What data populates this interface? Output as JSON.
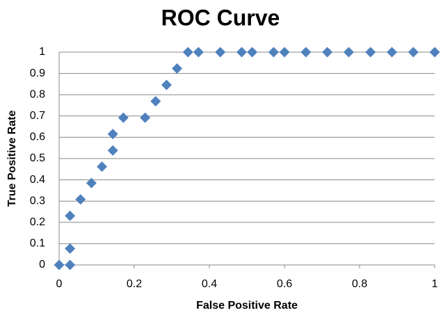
{
  "chart_data": {
    "type": "scatter",
    "title": "ROC Curve",
    "x_label": "False Positive Rate",
    "y_label": "True Positive Rate",
    "x": [
      0,
      0.029,
      0.029,
      0.029,
      0.057,
      0.086,
      0.114,
      0.143,
      0.143,
      0.171,
      0.229,
      0.257,
      0.286,
      0.314,
      0.343,
      0.371,
      0.429,
      0.486,
      0.514,
      0.571,
      0.6,
      0.657,
      0.714,
      0.771,
      0.829,
      0.886,
      0.943,
      1
    ],
    "values": [
      0,
      0,
      0.077,
      0.231,
      0.308,
      0.385,
      0.462,
      0.538,
      0.615,
      0.692,
      0.692,
      0.769,
      0.846,
      0.923,
      1,
      1,
      1,
      1,
      1,
      1,
      1,
      1,
      1,
      1,
      1,
      1,
      1,
      1
    ],
    "color": "#4f81bd",
    "xlim": [
      0,
      1
    ],
    "xticks": [
      0,
      0.2,
      0.4,
      0.6,
      0.8,
      1
    ],
    "ylim": [
      0,
      1
    ],
    "yticks": [
      0,
      0.1,
      0.2,
      0.3,
      0.4,
      0.5,
      0.6,
      0.7,
      0.8,
      0.9,
      1
    ],
    "grid": true
  }
}
